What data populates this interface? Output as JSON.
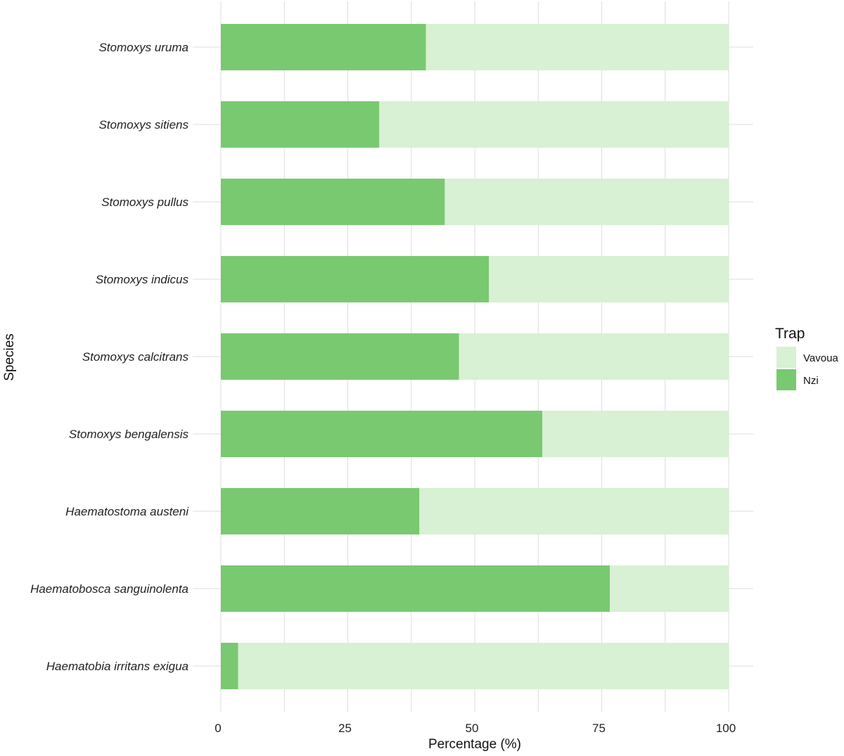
{
  "chart_data": {
    "type": "bar",
    "orientation": "horizontal",
    "stacked": true,
    "xlabel": "Percentage (%)",
    "ylabel": "Species",
    "xlim": [
      0,
      100
    ],
    "x_ticks": [
      "0",
      "25",
      "50",
      "75",
      "100"
    ],
    "grid": true,
    "legend_placement": "right",
    "legend_title": "Trap",
    "categories": [
      "Stomoxys uruma",
      "Stomoxys sitiens",
      "Stomoxys pullus",
      "Stomoxys indicus",
      "Stomoxys calcitrans",
      "Stomoxys bengalensis",
      "Haematostoma austeni",
      "Haematobosca sanguinolenta",
      "Haematobia irritans exigua"
    ],
    "series": [
      {
        "name": "Nzi",
        "color": "#79c971",
        "values": [
          40.4,
          31.2,
          44.1,
          52.8,
          46.9,
          63.3,
          39.1,
          76.6,
          3.4
        ]
      },
      {
        "name": "Vavoua",
        "color": "#d8f0d3",
        "values": [
          59.6,
          68.8,
          55.9,
          47.2,
          53.1,
          36.7,
          60.9,
          23.4,
          96.6
        ]
      }
    ],
    "legend_order": [
      "Vavoua",
      "Nzi"
    ]
  }
}
